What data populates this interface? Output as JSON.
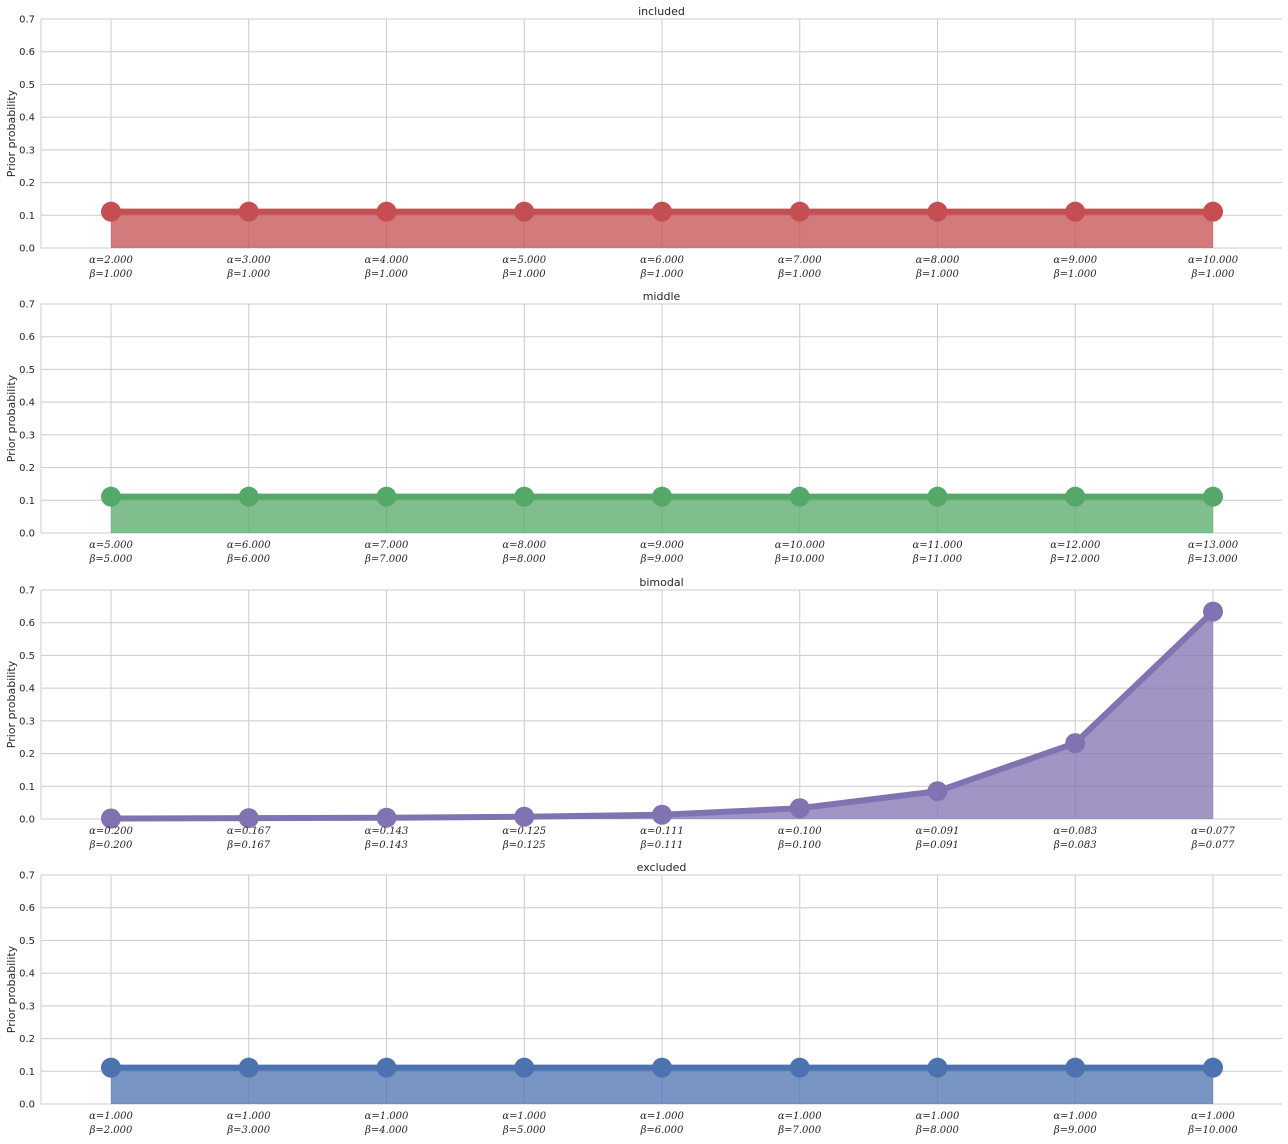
{
  "chart_data": [
    {
      "type": "area",
      "title": "included",
      "ylabel": "Prior probability",
      "ylim": [
        0,
        0.7
      ],
      "yticks": [
        "0.0",
        "0.1",
        "0.2",
        "0.3",
        "0.4",
        "0.5",
        "0.6",
        "0.7"
      ],
      "grid": true,
      "color": "#c44e52",
      "categories": [
        [
          "α=2.000",
          "β=1.000"
        ],
        [
          "α=3.000",
          "β=1.000"
        ],
        [
          "α=4.000",
          "β=1.000"
        ],
        [
          "α=5.000",
          "β=1.000"
        ],
        [
          "α=6.000",
          "β=1.000"
        ],
        [
          "α=7.000",
          "β=1.000"
        ],
        [
          "α=8.000",
          "β=1.000"
        ],
        [
          "α=9.000",
          "β=1.000"
        ],
        [
          "α=10.000",
          "β=1.000"
        ]
      ],
      "values": [
        0.111,
        0.111,
        0.111,
        0.111,
        0.111,
        0.111,
        0.111,
        0.111,
        0.111
      ]
    },
    {
      "type": "area",
      "title": "middle",
      "ylabel": "Prior probability",
      "ylim": [
        0,
        0.7
      ],
      "yticks": [
        "0.0",
        "0.1",
        "0.2",
        "0.3",
        "0.4",
        "0.5",
        "0.6",
        "0.7"
      ],
      "grid": true,
      "color": "#55a868",
      "categories": [
        [
          "α=5.000",
          "β=5.000"
        ],
        [
          "α=6.000",
          "β=6.000"
        ],
        [
          "α=7.000",
          "β=7.000"
        ],
        [
          "α=8.000",
          "β=8.000"
        ],
        [
          "α=9.000",
          "β=9.000"
        ],
        [
          "α=10.000",
          "β=10.000"
        ],
        [
          "α=11.000",
          "β=11.000"
        ],
        [
          "α=12.000",
          "β=12.000"
        ],
        [
          "α=13.000",
          "β=13.000"
        ]
      ],
      "values": [
        0.111,
        0.111,
        0.111,
        0.111,
        0.111,
        0.111,
        0.111,
        0.111,
        0.111
      ]
    },
    {
      "type": "area",
      "title": "bimodal",
      "ylabel": "Prior probability",
      "ylim": [
        0,
        0.7
      ],
      "yticks": [
        "0.0",
        "0.1",
        "0.2",
        "0.3",
        "0.4",
        "0.5",
        "0.6",
        "0.7"
      ],
      "grid": true,
      "color": "#8172b2",
      "categories": [
        [
          "α=0.200",
          "β=0.200"
        ],
        [
          "α=0.167",
          "β=0.167"
        ],
        [
          "α=0.143",
          "β=0.143"
        ],
        [
          "α=0.125",
          "β=0.125"
        ],
        [
          "α=0.111",
          "β=0.111"
        ],
        [
          "α=0.100",
          "β=0.100"
        ],
        [
          "α=0.091",
          "β=0.091"
        ],
        [
          "α=0.083",
          "β=0.083"
        ],
        [
          "α=0.077",
          "β=0.077"
        ]
      ],
      "values": [
        0.0015,
        0.0025,
        0.004,
        0.007,
        0.013,
        0.033,
        0.085,
        0.232,
        0.634
      ]
    },
    {
      "type": "area",
      "title": "excluded",
      "ylabel": "Prior probability",
      "ylim": [
        0,
        0.7
      ],
      "yticks": [
        "0.0",
        "0.1",
        "0.2",
        "0.3",
        "0.4",
        "0.5",
        "0.6",
        "0.7"
      ],
      "grid": true,
      "color": "#4c72b0",
      "categories": [
        [
          "α=1.000",
          "β=2.000"
        ],
        [
          "α=1.000",
          "β=3.000"
        ],
        [
          "α=1.000",
          "β=4.000"
        ],
        [
          "α=1.000",
          "β=5.000"
        ],
        [
          "α=1.000",
          "β=6.000"
        ],
        [
          "α=1.000",
          "β=7.000"
        ],
        [
          "α=1.000",
          "β=8.000"
        ],
        [
          "α=1.000",
          "β=9.000"
        ],
        [
          "α=1.000",
          "β=10.000"
        ]
      ],
      "values": [
        0.111,
        0.111,
        0.111,
        0.111,
        0.111,
        0.111,
        0.111,
        0.111,
        0.111
      ]
    }
  ]
}
